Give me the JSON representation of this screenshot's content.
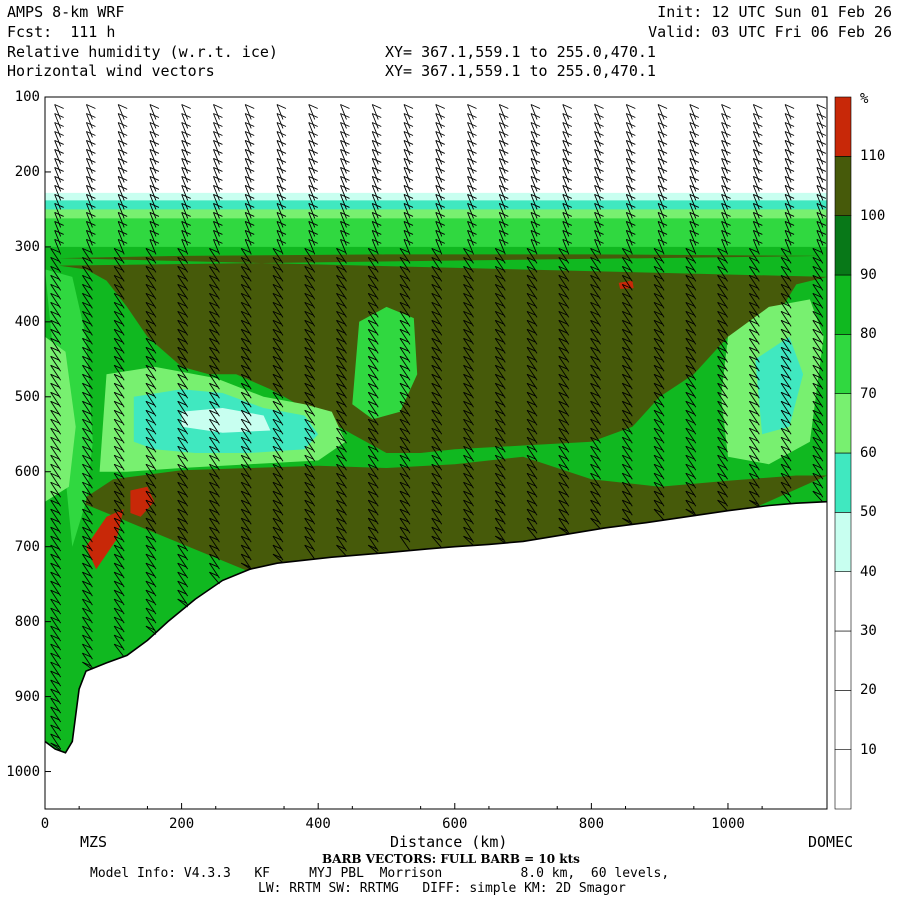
{
  "header": {
    "model": "AMPS 8-km WRF",
    "init": "Init: 12 UTC Sun 01 Feb 26",
    "fcst": "Fcst:  111 h",
    "valid": "Valid: 03 UTC Fri 06 Feb 26",
    "field1": "Relative humidity (w.r.t. ice)",
    "field2": "Horizontal wind vectors",
    "xy1": "XY= 367.1,559.1 to 255.0,470.1",
    "xy2": "XY= 367.1,559.1 to 255.0,470.1"
  },
  "footer": {
    "left_endpoint": "MZS",
    "right_endpoint": "DOMEC",
    "barb_note": "BARB VECTORS: FULL BARB = 10 kts",
    "model_info": "Model Info: V4.3.3   KF     MYJ PBL  Morrison          8.0 km,  60 levels,",
    "physics": "LW: RRTM SW: RRTMG   DIFF: simple KM: 2D Smagor"
  },
  "colorbar": {
    "unit": "%",
    "levels": [
      10,
      20,
      30,
      40,
      50,
      60,
      70,
      80,
      90,
      100,
      110
    ],
    "colors": [
      "#ffffff",
      "#ffffff",
      "#ffffff",
      "#c8fff0",
      "#40e8c0",
      "#78f070",
      "#30d840",
      "#10b820",
      "#087818",
      "#465a0a",
      "#c82808"
    ]
  },
  "chart_data": {
    "type": "heatmap",
    "title": "Relative humidity (w.r.t. ice)",
    "xlabel": "Distance (km)",
    "ylabel": "",
    "xlim": [
      0,
      1145
    ],
    "ylim": [
      1050,
      100
    ],
    "y_scale": "pressure (hPa, inverted)",
    "x_ticks": [
      0,
      200,
      400,
      600,
      800,
      1000
    ],
    "y_ticks": [
      100,
      200,
      300,
      400,
      500,
      600,
      700,
      800,
      900,
      1000
    ],
    "terrain_surface": [
      [
        0,
        960
      ],
      [
        15,
        970
      ],
      [
        30,
        975
      ],
      [
        40,
        960
      ],
      [
        50,
        890
      ],
      [
        60,
        866
      ],
      [
        90,
        855
      ],
      [
        120,
        845
      ],
      [
        150,
        825
      ],
      [
        180,
        800
      ],
      [
        200,
        785
      ],
      [
        220,
        770
      ],
      [
        260,
        745
      ],
      [
        300,
        730
      ],
      [
        340,
        722
      ],
      [
        380,
        718
      ],
      [
        420,
        714
      ],
      [
        460,
        711
      ],
      [
        500,
        708
      ],
      [
        560,
        703
      ],
      [
        600,
        700
      ],
      [
        650,
        697
      ],
      [
        700,
        693
      ],
      [
        760,
        684
      ],
      [
        820,
        675
      ],
      [
        880,
        668
      ],
      [
        940,
        660
      ],
      [
        1000,
        652
      ],
      [
        1060,
        645
      ],
      [
        1100,
        642
      ],
      [
        1145,
        640
      ]
    ],
    "rh_regions_percent": [
      {
        "region": "stratosphere above ~290 hPa",
        "rh": "< 30"
      },
      {
        "region": "upper cloud layer 310-470 hPa",
        "rh": "100-110"
      },
      {
        "region": "mid dry layer 480-560 hPa near 200-400 km",
        "rh": "40-60"
      },
      {
        "region": "lower layer 600 hPa to surface",
        "rh": "100-110"
      },
      {
        "region": "supersaturated patches near 100-180 km, 620-720 hPa",
        "rh": "> 110"
      }
    ],
    "wind_barbs": "columns of barbs every ~50 km, full barb = 10 kts"
  }
}
